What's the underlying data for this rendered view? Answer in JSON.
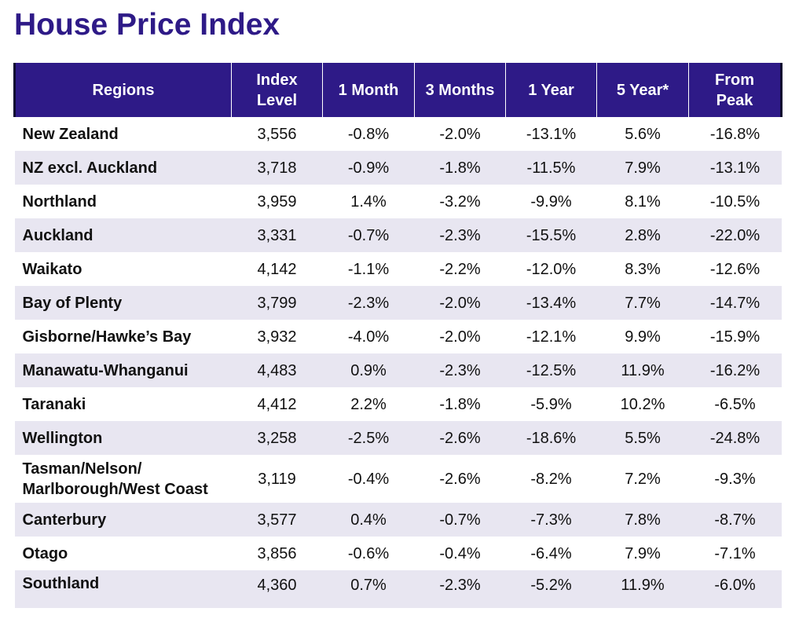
{
  "title": "House Price Index",
  "colors": {
    "title": "#2e1a87",
    "header_bg": "#2e1a87",
    "header_text": "#ffffff",
    "alt_row_bg": "#e8e6f1"
  },
  "table": {
    "headers": {
      "region": "Regions",
      "index_line1": "Index",
      "index_line2": "Level",
      "m1": "1 Month",
      "m3": "3 Months",
      "y1": "1 Year",
      "y5": "5 Year*",
      "peak_line1": "From",
      "peak_line2": "Peak"
    },
    "rows": [
      {
        "region": "New Zealand",
        "index": "3,556",
        "m1": "-0.8%",
        "m3": "-2.0%",
        "y1": "-13.1%",
        "y5": "5.6%",
        "peak": "-16.8%"
      },
      {
        "region": "NZ excl. Auckland",
        "index": "3,718",
        "m1": "-0.9%",
        "m3": "-1.8%",
        "y1": "-11.5%",
        "y5": "7.9%",
        "peak": "-13.1%"
      },
      {
        "region": "Northland",
        "index": "3,959",
        "m1": "1.4%",
        "m3": "-3.2%",
        "y1": "-9.9%",
        "y5": "8.1%",
        "peak": "-10.5%"
      },
      {
        "region": "Auckland",
        "index": "3,331",
        "m1": "-0.7%",
        "m3": "-2.3%",
        "y1": "-15.5%",
        "y5": "2.8%",
        "peak": "-22.0%"
      },
      {
        "region": "Waikato",
        "index": "4,142",
        "m1": "-1.1%",
        "m3": "-2.2%",
        "y1": "-12.0%",
        "y5": "8.3%",
        "peak": "-12.6%"
      },
      {
        "region": "Bay of Plenty",
        "index": "3,799",
        "m1": "-2.3%",
        "m3": "-2.0%",
        "y1": "-13.4%",
        "y5": "7.7%",
        "peak": "-14.7%"
      },
      {
        "region": "Gisborne/Hawke’s Bay",
        "index": "3,932",
        "m1": "-4.0%",
        "m3": "-2.0%",
        "y1": "-12.1%",
        "y5": "9.9%",
        "peak": "-15.9%"
      },
      {
        "region": "Manawatu-Whanganui",
        "index": "4,483",
        "m1": "0.9%",
        "m3": "-2.3%",
        "y1": "-12.5%",
        "y5": "11.9%",
        "peak": "-16.2%"
      },
      {
        "region": "Taranaki",
        "index": "4,412",
        "m1": "2.2%",
        "m3": "-1.8%",
        "y1": "-5.9%",
        "y5": "10.2%",
        "peak": "-6.5%"
      },
      {
        "region": "Wellington",
        "index": "3,258",
        "m1": "-2.5%",
        "m3": "-2.6%",
        "y1": "-18.6%",
        "y5": "5.5%",
        "peak": "-24.8%"
      },
      {
        "region_line1": "Tasman/Nelson/",
        "region_line2": "Marlborough/West Coast",
        "index": "3,119",
        "m1": "-0.4%",
        "m3": "-2.6%",
        "y1": "-8.2%",
        "y5": "7.2%",
        "peak": "-9.3%"
      },
      {
        "region": "Canterbury",
        "index": "3,577",
        "m1": "0.4%",
        "m3": "-0.7%",
        "y1": "-7.3%",
        "y5": "7.8%",
        "peak": "-8.7%"
      },
      {
        "region": "Otago",
        "index": "3,856",
        "m1": "-0.6%",
        "m3": "-0.4%",
        "y1": "-6.4%",
        "y5": "7.9%",
        "peak": "-7.1%"
      },
      {
        "region": "Southland",
        "index": "4,360",
        "m1": "0.7%",
        "m3": "-2.3%",
        "y1": "-5.2%",
        "y5": "11.9%",
        "peak": "-6.0%"
      }
    ]
  }
}
